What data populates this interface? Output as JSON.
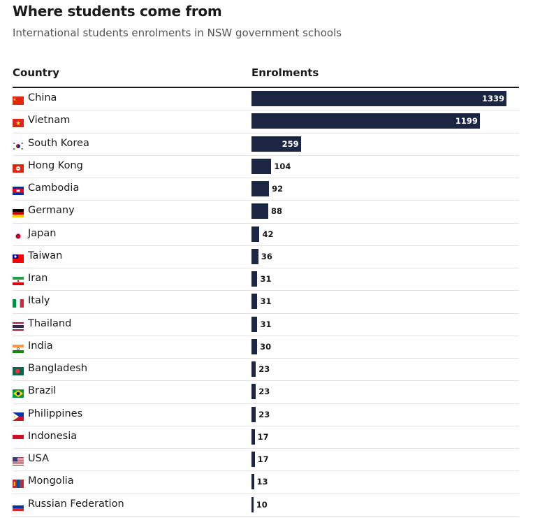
{
  "header": {
    "title": "Where students come from",
    "subtitle": "International students enrolments in NSW government schools",
    "col_country": "Country",
    "col_value": "Enrolments"
  },
  "chart_data": {
    "type": "bar",
    "orientation": "horizontal",
    "title": "Where students come from",
    "subtitle": "International students enrolments in NSW government schools",
    "xlabel": "Enrolments",
    "ylabel": "Country",
    "bar_color": "#1c2541",
    "categories": [
      "China",
      "Vietnam",
      "South Korea",
      "Hong Kong",
      "Cambodia",
      "Germany",
      "Japan",
      "Taiwan",
      "Iran",
      "Italy",
      "Thailand",
      "India",
      "Bangladesh",
      "Brazil",
      "Philippines",
      "Indonesia",
      "USA",
      "Mongolia",
      "Russian Federation"
    ],
    "values": [
      1339,
      1199,
      259,
      104,
      92,
      88,
      42,
      36,
      31,
      31,
      31,
      30,
      23,
      23,
      23,
      17,
      17,
      13,
      10
    ],
    "flags": [
      "china-flag-icon",
      "vietnam-flag-icon",
      "south-korea-flag-icon",
      "hong-kong-flag-icon",
      "cambodia-flag-icon",
      "germany-flag-icon",
      "japan-flag-icon",
      "taiwan-flag-icon",
      "iran-flag-icon",
      "italy-flag-icon",
      "thailand-flag-icon",
      "india-flag-icon",
      "bangladesh-flag-icon",
      "brazil-flag-icon",
      "philippines-flag-icon",
      "indonesia-flag-icon",
      "usa-flag-icon",
      "mongolia-flag-icon",
      "russia-flag-icon"
    ],
    "xlim": [
      0,
      1339
    ]
  }
}
